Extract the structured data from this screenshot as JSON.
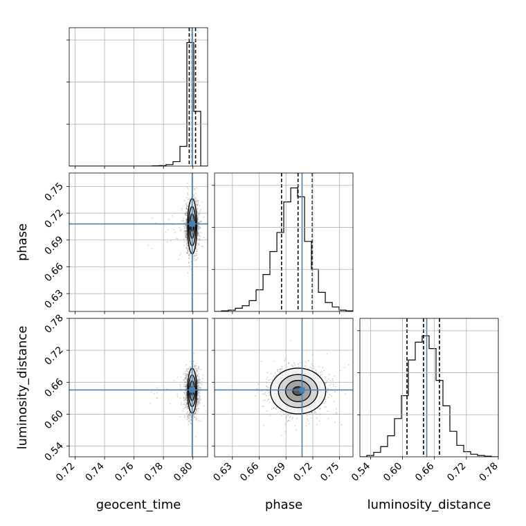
{
  "chart_data": {
    "type": "corner",
    "parameters": [
      {
        "name": "geocent_time",
        "label": "geocent_time",
        "lim": [
          0.716,
          0.81
        ],
        "ticks": [
          0.72,
          0.74,
          0.76,
          0.78,
          0.8
        ],
        "tick_labels": [
          "0.72",
          "0.74",
          "0.76",
          "0.78",
          "0.80"
        ],
        "truth": 0.7995,
        "quantiles": [
          0.7975,
          0.7995,
          0.8018
        ]
      },
      {
        "name": "phase",
        "label": "phase",
        "lim": [
          0.61,
          0.765
        ],
        "ticks": [
          0.63,
          0.66,
          0.69,
          0.72,
          0.75
        ],
        "tick_labels": [
          "0.63",
          "0.66",
          "0.69",
          "0.72",
          "0.75"
        ],
        "truth": 0.708,
        "quantiles": [
          0.685,
          0.7035,
          0.7195
        ]
      },
      {
        "name": "luminosity_distance",
        "label": "luminosity_distance",
        "lim": [
          0.52,
          0.78
        ],
        "ticks": [
          0.54,
          0.6,
          0.66,
          0.72,
          0.78
        ],
        "tick_labels": [
          "0.54",
          "0.60",
          "0.66",
          "0.72",
          "0.78"
        ],
        "truth": 0.6455,
        "quantiles": [
          0.6085,
          0.6395,
          0.6695
        ]
      }
    ],
    "histograms": [
      {
        "param": "geocent_time",
        "bin_edges": [
          0.716,
          0.7207,
          0.7254,
          0.7301,
          0.7348,
          0.7395,
          0.7442,
          0.7489,
          0.7536,
          0.7583,
          0.763,
          0.7677,
          0.7724,
          0.7771,
          0.7818,
          0.7865,
          0.7912,
          0.7959,
          0.8006,
          0.8053,
          0.81
        ],
        "counts": [
          0,
          0,
          0,
          0,
          0,
          0,
          0,
          0,
          0,
          0,
          0,
          0,
          0.002,
          0.004,
          0.012,
          0.035,
          0.155,
          0.97,
          0.43,
          0
        ]
      },
      {
        "param": "phase",
        "bin_edges": [
          0.61,
          0.6178,
          0.6255,
          0.6333,
          0.641,
          0.6488,
          0.6565,
          0.6643,
          0.672,
          0.6798,
          0.6875,
          0.6953,
          0.703,
          0.7108,
          0.7185,
          0.7263,
          0.734,
          0.7418,
          0.7495,
          0.7573,
          0.765
        ],
        "counts": [
          0.0,
          0.005,
          0.01,
          0.025,
          0.045,
          0.085,
          0.17,
          0.29,
          0.47,
          0.62,
          0.86,
          0.97,
          0.9,
          0.55,
          0.33,
          0.15,
          0.07,
          0.035,
          0.01,
          0.005
        ]
      },
      {
        "param": "luminosity_distance",
        "bin_edges": [
          0.52,
          0.533,
          0.546,
          0.559,
          0.572,
          0.585,
          0.598,
          0.611,
          0.624,
          0.637,
          0.65,
          0.663,
          0.676,
          0.689,
          0.702,
          0.715,
          0.728,
          0.741,
          0.754,
          0.767,
          0.78
        ],
        "counts": [
          0.0,
          0.01,
          0.035,
          0.08,
          0.165,
          0.3,
          0.48,
          0.76,
          0.9,
          0.95,
          0.85,
          0.6,
          0.4,
          0.2,
          0.09,
          0.04,
          0.02,
          0.01,
          0.005,
          0.0
        ]
      }
    ],
    "scatter_2d": [
      {
        "x": "geocent_time",
        "y": "phase",
        "center": [
          0.7995,
          0.7055
        ],
        "sigma": [
          0.0018,
          0.0125
        ],
        "contour_half_widths": [
          [
            0.0008,
            0.006
          ],
          [
            0.0016,
            0.014
          ],
          [
            0.0024,
            0.022
          ],
          [
            0.0031,
            0.031
          ]
        ]
      },
      {
        "x": "geocent_time",
        "y": "luminosity_distance",
        "center": [
          0.7995,
          0.644
        ],
        "sigma": [
          0.0018,
          0.017
        ],
        "contour_half_widths": [
          [
            0.0008,
            0.008
          ],
          [
            0.0016,
            0.019
          ],
          [
            0.0024,
            0.03
          ],
          [
            0.0031,
            0.042
          ]
        ]
      },
      {
        "x": "phase",
        "y": "luminosity_distance",
        "center": [
          0.7035,
          0.6435
        ],
        "sigma": [
          0.0125,
          0.018
        ],
        "contour_half_widths": [
          [
            0.006,
            0.008
          ],
          [
            0.014,
            0.02
          ],
          [
            0.022,
            0.031
          ],
          [
            0.031,
            0.043
          ]
        ]
      }
    ],
    "truth_color": "#4682b4",
    "quantile_line_style": "dashed",
    "grid": true
  }
}
